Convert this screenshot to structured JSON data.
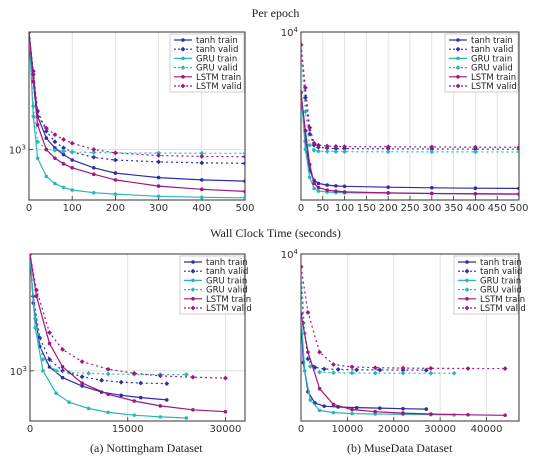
{
  "row_titles": [
    "Per epoch",
    "Wall Clock Time (seconds)"
  ],
  "captions": [
    "(a) Nottingham Dataset",
    "(b) MuseData Dataset"
  ],
  "colors": {
    "tanh": "#2e2ea8",
    "GRU": "#2bb7b7",
    "LSTM": "#a0157e"
  },
  "chart_data": [
    {
      "id": "nott-epoch",
      "type": "line",
      "xlabel": "",
      "ylabel": "",
      "yscale": "log",
      "xlim": [
        0,
        500
      ],
      "ylim": [
        540,
        4200
      ],
      "xticks": [
        0,
        100,
        200,
        300,
        400,
        500
      ],
      "xtick_labels": [
        "0",
        "100",
        "200",
        "300",
        "400",
        "500"
      ],
      "yticks": [
        1000
      ],
      "ytick_labels": [
        "10^3"
      ],
      "grid": true,
      "legend": "top-right",
      "series": [
        {
          "name": "tanh train",
          "style": "solid",
          "x": [
            0,
            10,
            20,
            40,
            60,
            80,
            100,
            150,
            200,
            300,
            400,
            500
          ],
          "y": [
            4200,
            2500,
            1500,
            1150,
            1020,
            940,
            880,
            800,
            750,
            710,
            690,
            680
          ]
        },
        {
          "name": "tanh valid",
          "style": "dashed",
          "x": [
            0,
            10,
            20,
            40,
            60,
            80,
            100,
            150,
            200,
            300,
            400,
            500
          ],
          "y": [
            4200,
            2600,
            1600,
            1250,
            1100,
            1020,
            970,
            910,
            880,
            860,
            850,
            845
          ]
        },
        {
          "name": "GRU train",
          "style": "solid",
          "x": [
            0,
            10,
            20,
            40,
            60,
            80,
            100,
            150,
            200,
            300,
            400,
            500
          ],
          "y": [
            4200,
            1500,
            900,
            720,
            660,
            630,
            610,
            590,
            580,
            565,
            558,
            555
          ]
        },
        {
          "name": "GRU valid",
          "style": "dashed",
          "x": [
            0,
            10,
            20,
            40,
            60,
            80,
            100,
            150,
            200,
            300,
            400,
            500
          ],
          "y": [
            4200,
            1700,
            1100,
            1000,
            990,
            980,
            970,
            965,
            960,
            958,
            955,
            955
          ]
        },
        {
          "name": "LSTM train",
          "style": "solid",
          "x": [
            0,
            10,
            20,
            40,
            60,
            80,
            100,
            150,
            200,
            300,
            400,
            500
          ],
          "y": [
            4200,
            2300,
            1350,
            1000,
            900,
            840,
            800,
            740,
            690,
            640,
            615,
            600
          ]
        },
        {
          "name": "LSTM valid",
          "style": "dashed",
          "x": [
            0,
            10,
            20,
            40,
            60,
            80,
            100,
            150,
            200,
            300,
            400,
            500
          ],
          "y": [
            4200,
            2500,
            1500,
            1300,
            1200,
            1130,
            1080,
            1000,
            960,
            930,
            920,
            915
          ]
        }
      ]
    },
    {
      "id": "muse-epoch",
      "type": "line",
      "xlabel": "",
      "ylabel": "",
      "yscale": "log",
      "xlim": [
        0,
        500
      ],
      "ylim": [
        540,
        10000
      ],
      "xticks": [
        0,
        50,
        100,
        150,
        200,
        250,
        300,
        350,
        400,
        450,
        500
      ],
      "xtick_labels": [
        "0",
        "50",
        "100",
        "150",
        "200",
        "250",
        "300",
        "350",
        "400",
        "450",
        "500"
      ],
      "yticks": [
        10000
      ],
      "ytick_labels": [
        "10^4"
      ],
      "grid": true,
      "legend": "top-right",
      "series": [
        {
          "name": "tanh train",
          "style": "solid",
          "x": [
            0,
            10,
            20,
            30,
            40,
            60,
            80,
            100,
            200,
            300,
            400,
            500
          ],
          "y": [
            3500,
            1500,
            900,
            760,
            720,
            700,
            690,
            685,
            675,
            668,
            663,
            660
          ]
        },
        {
          "name": "tanh valid",
          "style": "dashed",
          "x": [
            0,
            10,
            20,
            30,
            40,
            60,
            80,
            100,
            200,
            300,
            400,
            500
          ],
          "y": [
            8000,
            3200,
            1700,
            1400,
            1350,
            1330,
            1320,
            1320,
            1315,
            1310,
            1308,
            1305
          ]
        },
        {
          "name": "GRU train",
          "style": "solid",
          "x": [
            0,
            10,
            20,
            30,
            40,
            60,
            80,
            100,
            200,
            300,
            400,
            500
          ],
          "y": [
            3500,
            1300,
            800,
            660,
            630,
            620,
            615,
            612,
            608,
            605,
            603,
            601
          ]
        },
        {
          "name": "GRU valid",
          "style": "dashed",
          "x": [
            0,
            10,
            20,
            30,
            40,
            60,
            80,
            100,
            200,
            300,
            400,
            500
          ],
          "y": [
            8000,
            2500,
            1400,
            1280,
            1260,
            1255,
            1252,
            1250,
            1248,
            1246,
            1245,
            1244
          ]
        },
        {
          "name": "LSTM train",
          "style": "solid",
          "x": [
            0,
            10,
            20,
            30,
            40,
            60,
            80,
            100,
            200,
            300,
            400,
            500
          ],
          "y": [
            3500,
            1800,
            1000,
            720,
            670,
            640,
            630,
            622,
            612,
            605,
            600,
            597
          ]
        },
        {
          "name": "LSTM valid",
          "style": "dashed",
          "x": [
            0,
            10,
            20,
            30,
            40,
            60,
            80,
            100,
            200,
            300,
            400,
            500
          ],
          "y": [
            8000,
            3800,
            1900,
            1450,
            1400,
            1380,
            1370,
            1365,
            1360,
            1355,
            1352,
            1350
          ]
        }
      ]
    },
    {
      "id": "nott-wall",
      "type": "line",
      "xlabel": "",
      "ylabel": "",
      "yscale": "log",
      "xlim": [
        0,
        33000
      ],
      "ylim": [
        540,
        4200
      ],
      "xticks": [
        0,
        15000,
        30000
      ],
      "xtick_labels": [
        "0",
        "15000",
        "30000"
      ],
      "yticks": [
        1000
      ],
      "ytick_labels": [
        "10^3"
      ],
      "grid": true,
      "legend": "top-right",
      "series": [
        {
          "name": "tanh train",
          "style": "solid",
          "x": [
            0,
            500,
            1500,
            3000,
            5000,
            8000,
            11000,
            14000,
            17000,
            21000
          ],
          "y": [
            4200,
            2300,
            1350,
            1050,
            920,
            830,
            770,
            740,
            720,
            700
          ]
        },
        {
          "name": "tanh valid",
          "style": "dashed",
          "x": [
            0,
            500,
            1500,
            3000,
            5000,
            8000,
            11000,
            14000,
            17000,
            21000
          ],
          "y": [
            4200,
            2500,
            1500,
            1150,
            1000,
            930,
            890,
            870,
            860,
            855
          ]
        },
        {
          "name": "GRU train",
          "style": "solid",
          "x": [
            0,
            800,
            2000,
            4000,
            6000,
            9000,
            12000,
            16000,
            20000,
            24000
          ],
          "y": [
            4200,
            1700,
            1000,
            760,
            680,
            630,
            600,
            580,
            568,
            560
          ]
        },
        {
          "name": "GRU valid",
          "style": "dashed",
          "x": [
            0,
            800,
            2000,
            4000,
            6000,
            9000,
            12000,
            16000,
            20000,
            24000
          ],
          "y": [
            4200,
            1900,
            1150,
            1000,
            980,
            970,
            962,
            958,
            955,
            955
          ]
        },
        {
          "name": "LSTM train",
          "style": "solid",
          "x": [
            0,
            1000,
            3000,
            5000,
            8000,
            12000,
            16000,
            20000,
            25000,
            30000
          ],
          "y": [
            4200,
            2500,
            1400,
            1050,
            860,
            750,
            690,
            650,
            620,
            605
          ]
        },
        {
          "name": "LSTM valid",
          "style": "dashed",
          "x": [
            0,
            1000,
            3000,
            5000,
            8000,
            12000,
            16000,
            20000,
            25000,
            30000
          ],
          "y": [
            4200,
            2700,
            1600,
            1300,
            1120,
            1020,
            970,
            940,
            925,
            915
          ]
        }
      ]
    },
    {
      "id": "muse-wall",
      "type": "line",
      "xlabel": "",
      "ylabel": "",
      "yscale": "log",
      "xlim": [
        0,
        47000
      ],
      "ylim": [
        540,
        10000
      ],
      "xticks": [
        0,
        10000,
        20000,
        30000,
        40000
      ],
      "xtick_labels": [
        "0",
        "10000",
        "20000",
        "30000",
        "40000"
      ],
      "yticks": [
        10000
      ],
      "ytick_labels": [
        "10^4"
      ],
      "grid": true,
      "legend": "top-right",
      "series": [
        {
          "name": "tanh train",
          "style": "solid",
          "x": [
            0,
            500,
            1500,
            3000,
            5000,
            8000,
            12000,
            17000,
            22000,
            27000
          ],
          "y": [
            3500,
            1500,
            900,
            740,
            700,
            690,
            682,
            676,
            670,
            665
          ]
        },
        {
          "name": "tanh valid",
          "style": "dashed",
          "x": [
            0,
            500,
            1500,
            3000,
            5000,
            8000,
            12000,
            17000,
            22000,
            27000
          ],
          "y": [
            8000,
            3000,
            1600,
            1380,
            1340,
            1330,
            1320,
            1318,
            1315,
            1312
          ]
        },
        {
          "name": "GRU train",
          "style": "solid",
          "x": [
            0,
            800,
            2000,
            4000,
            7000,
            11000,
            16000,
            22000,
            28000,
            33000
          ],
          "y": [
            3500,
            1300,
            780,
            650,
            625,
            615,
            610,
            606,
            603,
            601
          ]
        },
        {
          "name": "GRU valid",
          "style": "dashed",
          "x": [
            0,
            800,
            2000,
            4000,
            7000,
            11000,
            16000,
            22000,
            28000,
            33000
          ],
          "y": [
            8000,
            2500,
            1400,
            1270,
            1255,
            1250,
            1248,
            1246,
            1245,
            1244
          ]
        },
        {
          "name": "LSTM train",
          "style": "solid",
          "x": [
            0,
            1500,
            4000,
            7000,
            11000,
            16000,
            22000,
            28000,
            36000,
            44000
          ],
          "y": [
            3500,
            1800,
            950,
            720,
            660,
            635,
            620,
            610,
            602,
            597
          ]
        },
        {
          "name": "LSTM valid",
          "style": "dashed",
          "x": [
            0,
            1500,
            4000,
            7000,
            11000,
            16000,
            22000,
            28000,
            36000,
            44000
          ],
          "y": [
            8000,
            3600,
            1800,
            1450,
            1390,
            1370,
            1362,
            1356,
            1352,
            1350
          ]
        }
      ]
    }
  ]
}
